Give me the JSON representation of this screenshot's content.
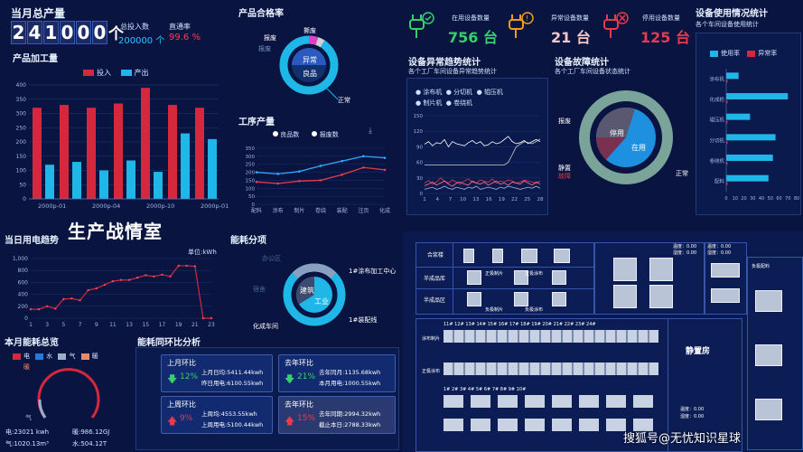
{
  "header": {
    "monthly_output_title": "当月总产量",
    "monthly_output_digits": [
      "2",
      "4",
      "1",
      "0",
      "0",
      "0"
    ],
    "monthly_output_unit": "个",
    "total_input_label": "总投入数",
    "total_input_value": "200000 个",
    "yield_label": "直通率",
    "yield_value": "99.6 %"
  },
  "dashboard_title": "生产战情室",
  "product_processing": {
    "title": "产品加工量",
    "legend_input": "投入",
    "legend_output": "产出",
    "chart_data": {
      "type": "bar",
      "categories": [
        "2000p-01",
        "2000p-02",
        "2000p-03",
        "2000p-04",
        "2000p-05",
        "2000p-06",
        "2000p-07",
        "2000p-08",
        "2000p-09",
        "2000p-10",
        "2000p-11",
        "2000p-12"
      ],
      "tick_labels": [
        "2000p-01",
        "2000p-04",
        "2000p-10",
        "2000p-01"
      ],
      "series": [
        {
          "name": "投入",
          "values": [
            320,
            330,
            320,
            335,
            390,
            330,
            320,
            0,
            0,
            0,
            0,
            0
          ]
        },
        {
          "name": "产出",
          "values": [
            120,
            130,
            100,
            135,
            95,
            230,
            210,
            0,
            0,
            0,
            0,
            0
          ]
        }
      ],
      "ylim": [
        0,
        400
      ],
      "yticks": [
        0,
        50,
        100,
        150,
        200,
        250,
        300,
        350,
        400
      ],
      "colors": {
        "input": "#d5283c",
        "output": "#1fb6e8"
      }
    }
  },
  "pass_rate": {
    "title": "产品合格率",
    "labels": {
      "rework": "报废",
      "rework2": "报废",
      "abnormal": "异常",
      "good": "良品",
      "normal": "正常",
      "tear": "撕废"
    },
    "chart_data": {
      "type": "pie",
      "slices": [
        {
          "name": "良品",
          "value": 88
        },
        {
          "name": "报废",
          "value": 6
        },
        {
          "name": "撕废",
          "value": 6
        }
      ]
    }
  },
  "process_output": {
    "title": "工序产量",
    "legend_good": "良品数",
    "legend_reject": "报废数",
    "chart_data": {
      "type": "line",
      "categories": [
        "配料",
        "涂布",
        "制片",
        "卷绕",
        "装配",
        "注页",
        "化成"
      ],
      "series": [
        {
          "name": "良品数",
          "values": [
            200,
            190,
            205,
            240,
            270,
            300,
            290
          ]
        },
        {
          "name": "报废数",
          "values": [
            140,
            130,
            145,
            150,
            185,
            230,
            215
          ]
        }
      ],
      "ylim": [
        0,
        350
      ],
      "yticks": [
        0,
        50,
        100,
        150,
        200,
        250,
        300,
        350
      ]
    }
  },
  "devices": {
    "online": {
      "label": "在用设备数量",
      "value": "756 台"
    },
    "abnormal": {
      "label": "异常设备数量",
      "value": "21 台"
    },
    "stopped": {
      "label": "停用设备数量",
      "value": "125 台"
    }
  },
  "device_abnormal_trend": {
    "title": "设备异常趋势统计",
    "subtitle": "各个工厂车间设备异常趋势统计",
    "legend": [
      "涂布机",
      "分切机",
      "辊压机",
      "制片机",
      "卷绕机"
    ],
    "chart_data": {
      "type": "line",
      "x_ticks": [
        "1",
        "4",
        "7",
        "10",
        "13",
        "16",
        "19",
        "22",
        "25",
        "28"
      ],
      "ylim": [
        0,
        150
      ],
      "yticks": [
        0,
        30,
        60,
        90,
        120,
        150
      ]
    }
  },
  "device_fault": {
    "title": "设备故障统计",
    "subtitle": "各个工厂车间设备状态统计",
    "labels": {
      "scrap": "报废",
      "idle": "静置",
      "fault": "故障",
      "stopped": "停用",
      "inuse": "在用",
      "normal": "正常"
    },
    "chart_data": {
      "type": "pie",
      "slices": [
        {
          "name": "在用",
          "value": 60
        },
        {
          "name": "停用",
          "value": 25
        },
        {
          "name": "故障",
          "value": 10
        },
        {
          "name": "静置",
          "value": 5
        }
      ]
    }
  },
  "device_usage": {
    "title": "设备使用情况统计",
    "subtitle": "各个车间设备使用统计",
    "legend_usage": "使用率",
    "legend_abnormal": "异常率",
    "chart_data": {
      "type": "bar",
      "categories": [
        "涂布机",
        "化成柜",
        "辊压机",
        "分切机",
        "卷绕机",
        "配料"
      ],
      "series": [
        {
          "name": "使用率",
          "values": [
            14,
            70,
            27,
            56,
            53,
            48
          ]
        },
        {
          "name": "异常率",
          "values": [
            1,
            1,
            1,
            1,
            1,
            1
          ]
        }
      ],
      "xlim": [
        0,
        80
      ],
      "xticks": [
        0,
        10,
        20,
        30,
        40,
        50,
        60,
        70,
        80
      ]
    }
  },
  "power_trend": {
    "title": "当日用电趋势",
    "unit": "单位:kWh",
    "chart_data": {
      "type": "line",
      "x_ticks": [
        "1",
        "3",
        "5",
        "7",
        "9",
        "11",
        "13",
        "15",
        "17",
        "19",
        "21",
        "23"
      ],
      "values": [
        150,
        150,
        200,
        160,
        320,
        330,
        300,
        470,
        500,
        560,
        620,
        640,
        640,
        680,
        720,
        700,
        730,
        700,
        880,
        880,
        870,
        0,
        0
      ],
      "ylim": [
        0,
        1000
      ],
      "yticks": [
        "0",
        "200",
        "400",
        "600",
        "800",
        "1,000"
      ]
    }
  },
  "energy_split": {
    "title": "能耗分项",
    "labels": {
      "office": "办公区",
      "dorm": "宿舍",
      "building": "建筑",
      "industry": "工业",
      "line1": "1#涂布加工中心",
      "line2": "1#装配线",
      "chem": "化成车间"
    },
    "chart_data": {
      "type": "pie",
      "slices": [
        {
          "name": "工业",
          "value": 70
        },
        {
          "name": "建筑",
          "value": 30
        }
      ]
    }
  },
  "monthly_energy": {
    "title": "本月能耗总览",
    "legend": [
      "电",
      "水",
      "气",
      "暖"
    ],
    "ring_labels": {
      "warm": "暖",
      "gas": "气"
    },
    "electric": "电:23021 kwh",
    "warm": "暖:986.12GJ",
    "gas": "气:1020.13m³",
    "water": "水:504.12T"
  },
  "energy_compare": {
    "title": "能耗同环比分析",
    "cards": [
      {
        "title": "上月环比",
        "pct": "12%",
        "dir": "down",
        "l1": "上月日均:5411.44kwh",
        "l2": "昨日用电:6100.55kwh"
      },
      {
        "title": "去年环比",
        "pct": "21%",
        "dir": "down",
        "l1": "去年同月:1135.68kwh",
        "l2": "本月用电:1000.55kwh"
      },
      {
        "title": "上周环比",
        "pct": "9%",
        "dir": "up",
        "l1": "上周均:4553.55kwh",
        "l2": "上周用电:5100.44kwh"
      },
      {
        "title": "去年环比",
        "pct": "15%",
        "dir": "up",
        "l1": "去年同期:2994.32kwh",
        "l2": "截止本日:2788.33kwh"
      }
    ]
  },
  "floor": {
    "rows_left": [
      "合浆楼",
      "半成品库",
      "半成品区"
    ],
    "row_mid": [
      "涂布制片",
      "正极涂布"
    ],
    "labels_top_a": [
      "正极制片",
      "正极涂布",
      "负极制片",
      "负极涂布"
    ],
    "static_room": "静置房",
    "storage": "负极配料",
    "temp": "温度：0.00",
    "humid": "湿度：0.00",
    "machine_labels": [
      "11#",
      "12#",
      "13#",
      "14#",
      "15#",
      "16#",
      "17#",
      "18#",
      "19#",
      "20#",
      "21#",
      "22#",
      "23#",
      "24#",
      "1#",
      "2#",
      "3#",
      "4#",
      "5#",
      "6#",
      "7#",
      "8#",
      "9#",
      "10#"
    ]
  },
  "watermark": "搜狐号@无忧知识星球"
}
